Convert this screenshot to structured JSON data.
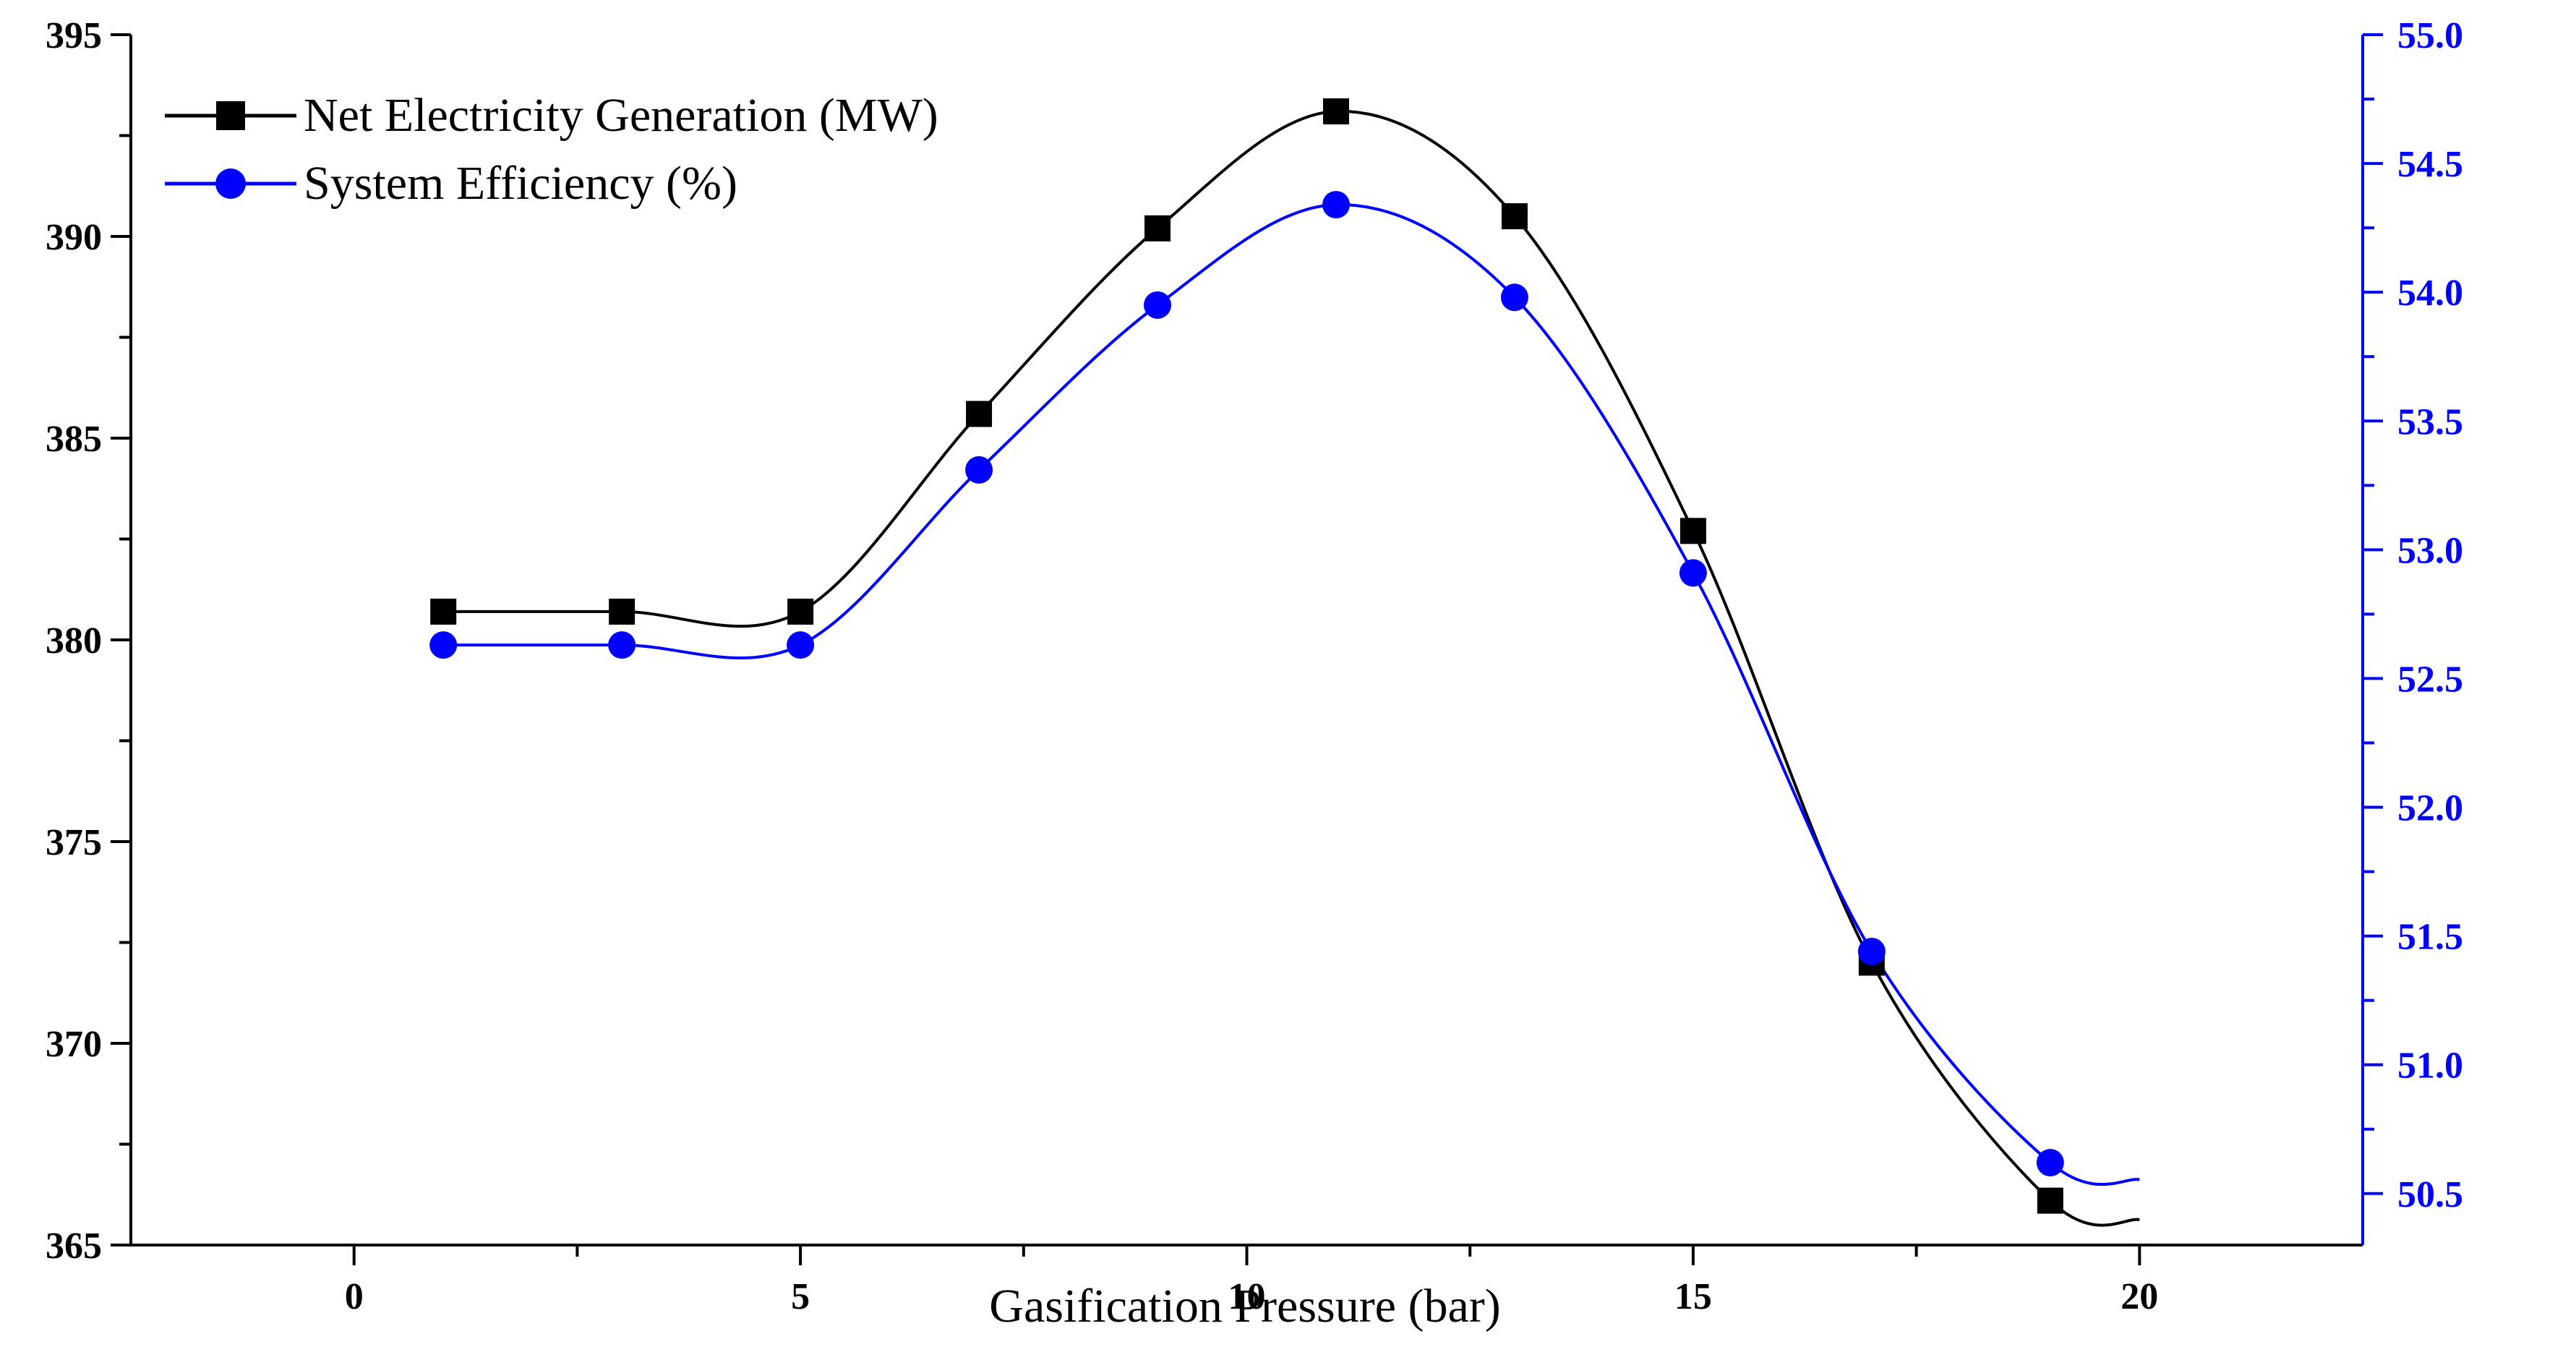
{
  "chart_data": {
    "type": "line",
    "title": "",
    "xlabel": "Gasification Pressure (bar)",
    "ylabel_left": "",
    "ylabel_right": "",
    "xlim": [
      -2.5,
      22.5
    ],
    "ylim_left": [
      365,
      395
    ],
    "ylim_right": [
      50.3,
      55.0
    ],
    "x_ticks": [
      0,
      5,
      10,
      15,
      20
    ],
    "y_ticks_left": [
      365,
      370,
      375,
      380,
      385,
      390,
      395
    ],
    "y_ticks_right": [
      "50.5",
      "51.0",
      "51.5",
      "52.0",
      "52.5",
      "53.0",
      "53.5",
      "54.0",
      "54.5",
      "55.0"
    ],
    "legend_position": "top-left",
    "grid": false,
    "colors": {
      "left_axis": "#000000",
      "right_axis": "#0000ff"
    },
    "series": [
      {
        "name": "Net Electricity Generation (MW)",
        "axis": "left",
        "color": "#000000",
        "marker": "square",
        "x": [
          1,
          3,
          5,
          7,
          9,
          11,
          13,
          15,
          17,
          19
        ],
        "values": [
          380.7,
          380.7,
          380.7,
          385.6,
          390.2,
          393.1,
          390.5,
          382.7,
          372.0,
          366.1
        ]
      },
      {
        "name": "System Efficiency (%)",
        "axis": "right",
        "color": "#0000ff",
        "marker": "circle",
        "x": [
          1,
          3,
          5,
          7,
          9,
          11,
          13,
          15,
          17,
          19
        ],
        "values": [
          52.63,
          52.63,
          52.63,
          53.31,
          53.95,
          54.34,
          53.98,
          52.91,
          51.44,
          50.62
        ]
      }
    ]
  }
}
